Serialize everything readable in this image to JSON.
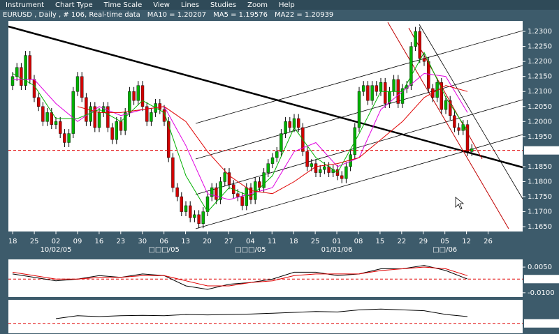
{
  "menu": [
    "Instrument",
    "Chart Type",
    "Time Scale",
    "View",
    "Lines",
    "Studies",
    "Zoom",
    "Help"
  ],
  "chart_data": [
    {
      "type": "candlestick",
      "title": "EURUSD , Daily , # 106, Real-time data",
      "up_color": "#00b000",
      "down_color": "#d00000",
      "ohlc": [
        [
          1.212,
          1.2165,
          1.2105,
          1.215
        ],
        [
          1.215,
          1.2195,
          1.2135,
          1.218
        ],
        [
          1.218,
          1.2195,
          1.2105,
          1.212
        ],
        [
          1.212,
          1.2235,
          1.2105,
          1.222
        ],
        [
          1.222,
          1.2235,
          1.2125,
          1.214
        ],
        [
          1.214,
          1.2155,
          1.2065,
          1.208
        ],
        [
          1.208,
          1.2095,
          1.2035,
          1.205
        ],
        [
          1.205,
          1.2065,
          1.1985,
          1.2
        ],
        [
          1.2,
          1.2045,
          1.1985,
          1.203
        ],
        [
          1.203,
          1.2045,
          1.1975,
          1.199
        ],
        [
          1.199,
          1.2015,
          1.1975,
          1.2
        ],
        [
          1.2,
          1.2015,
          1.1945,
          1.196
        ],
        [
          1.196,
          1.1975,
          1.1915,
          1.193
        ],
        [
          1.193,
          1.1975,
          1.1915,
          1.196
        ],
        [
          1.196,
          1.2115,
          1.1945,
          1.21
        ],
        [
          1.21,
          1.2165,
          1.2085,
          1.215
        ],
        [
          1.215,
          1.2165,
          1.2065,
          1.208
        ],
        [
          1.208,
          1.2095,
          1.1985,
          1.2
        ],
        [
          1.2,
          1.2065,
          1.1985,
          1.205
        ],
        [
          1.205,
          1.2065,
          1.1965,
          1.198
        ],
        [
          1.198,
          1.2045,
          1.1965,
          1.203
        ],
        [
          1.203,
          1.2065,
          1.2015,
          1.205
        ],
        [
          1.205,
          1.2065,
          1.1965,
          1.198
        ],
        [
          1.198,
          1.1995,
          1.1925,
          1.194
        ],
        [
          1.194,
          1.2015,
          1.1925,
          1.2
        ],
        [
          1.2,
          1.2015,
          1.1955,
          1.197
        ],
        [
          1.197,
          1.2045,
          1.1955,
          1.203
        ],
        [
          1.203,
          1.2115,
          1.2015,
          1.21
        ],
        [
          1.21,
          1.2115,
          1.2055,
          1.207
        ],
        [
          1.207,
          1.2135,
          1.2055,
          1.212
        ],
        [
          1.212,
          1.2135,
          1.2035,
          1.205
        ],
        [
          1.205,
          1.2065,
          1.1985,
          1.2
        ],
        [
          1.2,
          1.2045,
          1.1985,
          1.203
        ],
        [
          1.203,
          1.2075,
          1.2015,
          1.206
        ],
        [
          1.206,
          1.2075,
          1.2025,
          1.204
        ],
        [
          1.204,
          1.2055,
          1.1985,
          1.2
        ],
        [
          1.2,
          1.2015,
          1.1865,
          1.188
        ],
        [
          1.188,
          1.1895,
          1.1765,
          1.178
        ],
        [
          1.178,
          1.1795,
          1.1735,
          1.175
        ],
        [
          1.175,
          1.1765,
          1.1685,
          1.17
        ],
        [
          1.17,
          1.1735,
          1.1685,
          1.172
        ],
        [
          1.172,
          1.1735,
          1.1665,
          1.168
        ],
        [
          1.168,
          1.1705,
          1.1665,
          1.169
        ],
        [
          1.169,
          1.1705,
          1.1645,
          1.166
        ],
        [
          1.166,
          1.1715,
          1.1645,
          1.17
        ],
        [
          1.17,
          1.1765,
          1.1685,
          1.175
        ],
        [
          1.175,
          1.1795,
          1.1735,
          1.178
        ],
        [
          1.178,
          1.1795,
          1.1725,
          1.174
        ],
        [
          1.174,
          1.1815,
          1.1725,
          1.18
        ],
        [
          1.18,
          1.1845,
          1.1785,
          1.183
        ],
        [
          1.183,
          1.1845,
          1.1775,
          1.179
        ],
        [
          1.179,
          1.1805,
          1.1745,
          1.176
        ],
        [
          1.176,
          1.1775,
          1.1735,
          1.175
        ],
        [
          1.175,
          1.1765,
          1.1705,
          1.172
        ],
        [
          1.172,
          1.1795,
          1.1705,
          1.178
        ],
        [
          1.178,
          1.1795,
          1.1725,
          1.174
        ],
        [
          1.174,
          1.1815,
          1.1725,
          1.18
        ],
        [
          1.18,
          1.1815,
          1.1765,
          1.178
        ],
        [
          1.178,
          1.1845,
          1.1765,
          1.183
        ],
        [
          1.183,
          1.1875,
          1.1815,
          1.186
        ],
        [
          1.186,
          1.1895,
          1.1845,
          1.188
        ],
        [
          1.188,
          1.1915,
          1.1865,
          1.19
        ],
        [
          1.19,
          1.1975,
          1.1885,
          1.196
        ],
        [
          1.196,
          1.2015,
          1.1945,
          1.2
        ],
        [
          1.2,
          1.2015,
          1.1965,
          1.198
        ],
        [
          1.198,
          1.2025,
          1.1965,
          1.201
        ],
        [
          1.201,
          1.2025,
          1.1965,
          1.198
        ],
        [
          1.198,
          1.1995,
          1.1885,
          1.19
        ],
        [
          1.19,
          1.1915,
          1.1835,
          1.185
        ],
        [
          1.185,
          1.1875,
          1.1835,
          1.186
        ],
        [
          1.186,
          1.1875,
          1.1815,
          1.183
        ],
        [
          1.183,
          1.1855,
          1.1815,
          1.184
        ],
        [
          1.184,
          1.1865,
          1.1825,
          1.185
        ],
        [
          1.185,
          1.1865,
          1.1815,
          1.183
        ],
        [
          1.183,
          1.1855,
          1.1815,
          1.184
        ],
        [
          1.184,
          1.1855,
          1.1805,
          1.182
        ],
        [
          1.182,
          1.1835,
          1.1795,
          1.181
        ],
        [
          1.181,
          1.1865,
          1.1795,
          1.185
        ],
        [
          1.185,
          1.1905,
          1.1835,
          1.189
        ],
        [
          1.189,
          1.1995,
          1.1875,
          1.198
        ],
        [
          1.198,
          1.2115,
          1.1965,
          1.21
        ],
        [
          1.21,
          1.2135,
          1.2085,
          1.212
        ],
        [
          1.212,
          1.2135,
          1.2055,
          1.207
        ],
        [
          1.207,
          1.2135,
          1.2055,
          1.212
        ],
        [
          1.212,
          1.2135,
          1.2085,
          1.21
        ],
        [
          1.21,
          1.2145,
          1.2085,
          1.213
        ],
        [
          1.213,
          1.2145,
          1.2045,
          1.206
        ],
        [
          1.206,
          1.2115,
          1.2045,
          1.21
        ],
        [
          1.21,
          1.2155,
          1.2085,
          1.214
        ],
        [
          1.214,
          1.2155,
          1.2045,
          1.206
        ],
        [
          1.206,
          1.2125,
          1.2045,
          1.211
        ],
        [
          1.211,
          1.2135,
          1.2095,
          1.212
        ],
        [
          1.212,
          1.2265,
          1.2105,
          1.225
        ],
        [
          1.225,
          1.2315,
          1.2235,
          1.23
        ],
        [
          1.23,
          1.2315,
          1.2195,
          1.221
        ],
        [
          1.221,
          1.2225,
          1.2185,
          1.22
        ],
        [
          1.22,
          1.2215,
          1.2095,
          1.211
        ],
        [
          1.211,
          1.2125,
          1.2065,
          1.208
        ],
        [
          1.208,
          1.2145,
          1.2065,
          1.213
        ],
        [
          1.213,
          1.2145,
          1.2025,
          1.204
        ],
        [
          1.204,
          1.2085,
          1.2025,
          1.207
        ],
        [
          1.207,
          1.2085,
          1.2005,
          1.202
        ],
        [
          1.202,
          1.2035,
          1.1965,
          1.198
        ],
        [
          1.198,
          1.1995,
          1.1955,
          1.197
        ],
        [
          1.197,
          1.2005,
          1.1955,
          1.199
        ],
        [
          1.199,
          1.2005,
          1.1885,
          1.19
        ],
        [
          1.19,
          1.1925,
          1.1885,
          1.191
        ]
      ],
      "x": [
        0,
        5,
        10,
        15,
        20,
        25,
        30,
        35,
        40,
        45,
        50,
        55,
        60,
        65,
        70,
        75,
        80,
        85,
        90,
        95,
        100,
        105
      ],
      "series": [
        {
          "name": "MA10 = 1.20207",
          "color": "#e000e0",
          "values": [
            1.214,
            1.214,
            1.206,
            1.2,
            1.205,
            1.202,
            1.204,
            1.205,
            1.192,
            1.176,
            1.174,
            1.176,
            1.178,
            1.19,
            1.193,
            1.185,
            1.188,
            1.204,
            1.21,
            1.216,
            1.215,
            1.203
          ]
        },
        {
          "name": "MA5 = 1.19576",
          "color": "#00b000",
          "values": [
            1.216,
            1.212,
            1.201,
            1.201,
            1.204,
            1.2,
            1.207,
            1.203,
            1.182,
            1.17,
            1.178,
            1.175,
            1.182,
            1.198,
            1.188,
            1.183,
            1.196,
            1.21,
            1.21,
            1.223,
            1.208,
            1.197
          ]
        },
        {
          "name": "MA22 = 1.20939",
          "color": "#e00000",
          "values": [
            null,
            null,
            null,
            1.205,
            1.203,
            1.203,
            1.204,
            1.205,
            1.2,
            1.19,
            1.182,
            1.177,
            1.176,
            1.18,
            1.185,
            1.186,
            1.188,
            1.194,
            1.2,
            1.208,
            1.212,
            1.21
          ]
        }
      ],
      "xlim": [
        -1,
        118
      ],
      "ylim": [
        1.1634,
        1.2335
      ],
      "yticks": [
        {
          "value": 1.23,
          "label": "1.2300"
        },
        {
          "value": 1.225,
          "label": "1.2250"
        },
        {
          "value": 1.22,
          "label": "1.2200"
        },
        {
          "value": 1.215,
          "label": "1.2150"
        },
        {
          "value": 1.21,
          "label": "1.2100"
        },
        {
          "value": 1.205,
          "label": "1.2050"
        },
        {
          "value": 1.2,
          "label": "1.2000"
        },
        {
          "value": 1.195,
          "label": "1.1950"
        },
        {
          "value": 1.185,
          "label": "1.1850"
        },
        {
          "value": 1.18,
          "label": "1.1800"
        },
        {
          "value": 1.175,
          "label": "1.1750"
        },
        {
          "value": 1.17,
          "label": "1.1700"
        },
        {
          "value": 1.165,
          "label": "1.1650"
        }
      ],
      "xticks": [
        {
          "value": 0,
          "label": "18"
        },
        {
          "value": 5,
          "label": "25"
        },
        {
          "value": 10,
          "label": "02"
        },
        {
          "value": 15,
          "label": "09"
        },
        {
          "value": 20,
          "label": "16"
        },
        {
          "value": 25,
          "label": "23"
        },
        {
          "value": 30,
          "label": "30"
        },
        {
          "value": 35,
          "label": "06"
        },
        {
          "value": 40,
          "label": "13"
        },
        {
          "value": 45,
          "label": "20"
        },
        {
          "value": 50,
          "label": "27"
        },
        {
          "value": 55,
          "label": "04"
        },
        {
          "value": 60,
          "label": "11"
        },
        {
          "value": 65,
          "label": "18"
        },
        {
          "value": 70,
          "label": "25"
        },
        {
          "value": 75,
          "label": "01"
        },
        {
          "value": 80,
          "label": "08"
        },
        {
          "value": 85,
          "label": "15"
        },
        {
          "value": 90,
          "label": "22"
        },
        {
          "value": 95,
          "label": "29"
        },
        {
          "value": 100,
          "label": "05"
        },
        {
          "value": 105,
          "label": "12"
        },
        {
          "value": 110,
          "label": "26"
        }
      ],
      "date_labels": [
        {
          "value": 10,
          "label": "10/02/05"
        },
        {
          "value": 35,
          "label": "□□□/05"
        },
        {
          "value": 55,
          "label": "□□□/05"
        },
        {
          "value": 75,
          "label": "01/01/06"
        },
        {
          "value": 100,
          "label": "□□/06"
        }
      ],
      "hline": {
        "value": 1.1904,
        "color": "#e00000"
      }
    },
    {
      "type": "line",
      "title": "MACD 26;12;9",
      "x": [
        0,
        5,
        10,
        15,
        20,
        25,
        30,
        35,
        40,
        45,
        50,
        55,
        60,
        65,
        70,
        75,
        80,
        85,
        90,
        95,
        100,
        105
      ],
      "series": [
        {
          "color": "#000000",
          "values": [
            0.001,
            -0.001,
            -0.003,
            -0.002,
            0.0,
            -0.001,
            0.001,
            0.0,
            -0.006,
            -0.008,
            -0.005,
            -0.004,
            -0.002,
            0.002,
            0.002,
            0.0,
            0.001,
            0.004,
            0.004,
            0.006,
            0.003,
            -0.002
          ]
        },
        {
          "color": "#e00000",
          "values": [
            0.002,
            0.0,
            -0.002,
            -0.002,
            -0.001,
            -0.001,
            0.0,
            0.0,
            -0.003,
            -0.006,
            -0.006,
            -0.004,
            -0.003,
            0.0,
            0.001,
            0.001,
            0.001,
            0.003,
            0.004,
            0.005,
            0.004,
            0.0
          ]
        }
      ],
      "xlim": [
        -1,
        118
      ],
      "ylim": [
        -0.0125,
        0.0095
      ],
      "yticks": [
        {
          "value": 0.005,
          "label": "0.0050"
        },
        {
          "value": -0.01,
          "label": "-0.0100"
        }
      ],
      "hline": {
        "value": -0.00201,
        "color": "#e00000"
      }
    },
    {
      "type": "line",
      "title": "RSI 10",
      "x": [
        0,
        5,
        10,
        15,
        20,
        25,
        30,
        35,
        40,
        45,
        50,
        55,
        60,
        65,
        70,
        75,
        80,
        85,
        90,
        95,
        100,
        105
      ],
      "series": [
        {
          "color": "#000000",
          "values": [
            null,
            null,
            45,
            52,
            50,
            52,
            53,
            52,
            55,
            54,
            55,
            56,
            58,
            60,
            62,
            61,
            66,
            68,
            66,
            64,
            55,
            50
          ]
        }
      ],
      "xlim": [
        -1,
        118
      ],
      "ylim": [
        10,
        90
      ],
      "hline": {
        "value": 33.67335,
        "color": "#e00000"
      }
    }
  ]
}
